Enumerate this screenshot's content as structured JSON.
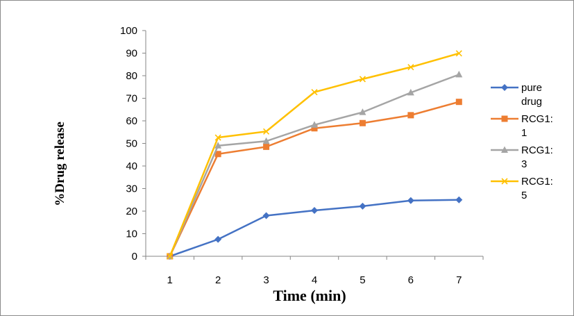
{
  "chart_data": {
    "type": "line",
    "title": "",
    "xlabel": "Time (min)",
    "ylabel": "%Drug release",
    "categories": [
      "1",
      "2",
      "3",
      "4",
      "5",
      "6",
      "7"
    ],
    "ylim": [
      0,
      100
    ],
    "yticks": [
      0,
      10,
      20,
      30,
      40,
      50,
      60,
      70,
      80,
      90,
      100
    ],
    "grid": false,
    "legend_position": "right",
    "series": [
      {
        "name_lines": [
          "pure",
          "drug"
        ],
        "color": "#4472C4",
        "marker": "diamond",
        "values": [
          0,
          7.5,
          18,
          20.3,
          22.2,
          24.7,
          25
        ]
      },
      {
        "name_lines": [
          "RCG1:",
          "1"
        ],
        "color": "#ED7D31",
        "marker": "square",
        "values": [
          0,
          45.3,
          48.5,
          56.7,
          59,
          62.5,
          68.4
        ]
      },
      {
        "name_lines": [
          "RCG1:",
          "3"
        ],
        "color": "#A5A5A5",
        "marker": "triangle",
        "values": [
          0,
          49,
          51,
          58.2,
          63.8,
          72.5,
          80.5
        ]
      },
      {
        "name_lines": [
          "RCG1:",
          "5"
        ],
        "color": "#FFC000",
        "marker": "x",
        "values": [
          0,
          52.6,
          55.3,
          72.7,
          78.5,
          83.8,
          89.9
        ]
      }
    ]
  }
}
